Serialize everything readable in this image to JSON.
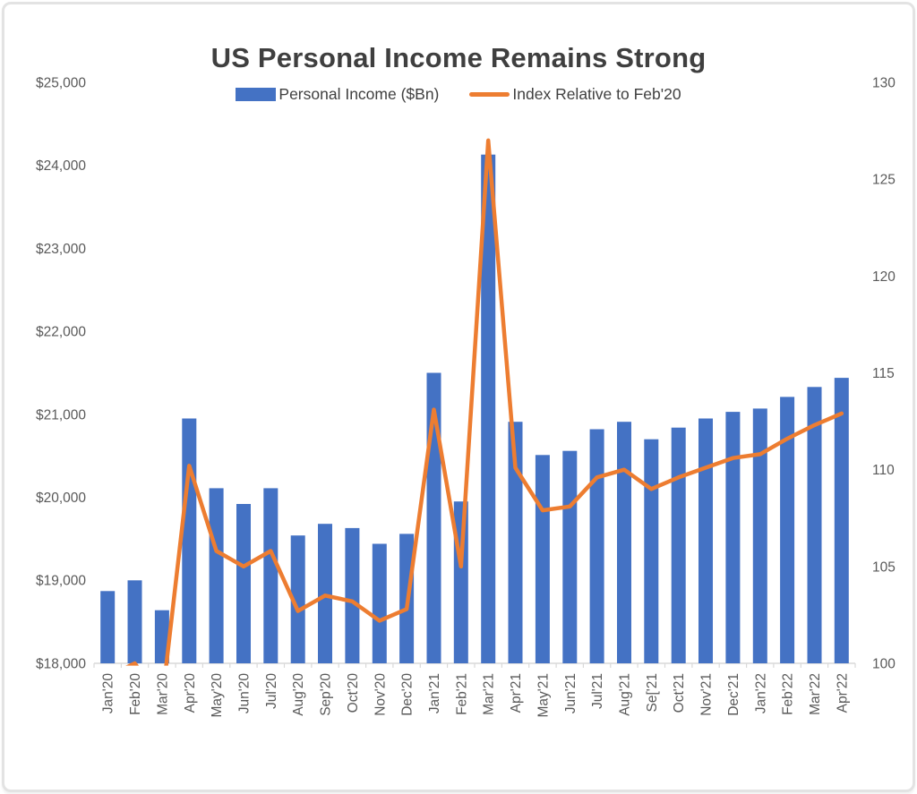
{
  "colors": {
    "background": "#FFFFFF",
    "frame_border": "#E3E3E3",
    "title_text": "#3F3F3F",
    "axis_text": "#595959",
    "axis_line": "#D9D9D9",
    "bar": "#4472C4",
    "line": "#ED7D31"
  },
  "chart_data": {
    "type": "combo",
    "title": "US Personal Income Remains Strong",
    "legend_position": "top-center",
    "grid": false,
    "categories": [
      "Jan'20",
      "Feb'20",
      "Mar'20",
      "Apr'20",
      "May'20",
      "Jun'20",
      "Jul'20",
      "Aug'20",
      "Sep'20",
      "Oct'20",
      "Nov'20",
      "Dec'20",
      "Jan'21",
      "Feb'21",
      "Mar'21",
      "Apr'21",
      "May'21",
      "Jun'21",
      "Jul'21",
      "Aug'21",
      "Se['21",
      "Oct'21",
      "Nov'21",
      "Dec'21",
      "Jan'22",
      "Feb'22",
      "Mar'22",
      "Apr'22"
    ],
    "series": [
      {
        "name": "Personal Income ($Bn)",
        "type": "bar",
        "axis": "left",
        "color": "#4472C4",
        "values": [
          18870,
          19000,
          18640,
          20950,
          20110,
          19920,
          20110,
          19540,
          19680,
          19630,
          19440,
          19560,
          21500,
          19950,
          24130,
          20910,
          20510,
          20560,
          20820,
          20910,
          20700,
          20840,
          20950,
          21030,
          21070,
          21210,
          21330,
          21440
        ]
      },
      {
        "name": "Index Relative to Feb'20",
        "type": "line",
        "axis": "right",
        "color": "#ED7D31",
        "values": [
          99.3,
          100.0,
          98.0,
          110.2,
          105.8,
          105.0,
          105.8,
          102.7,
          103.5,
          103.2,
          102.2,
          102.8,
          113.1,
          105.0,
          127.0,
          110.1,
          107.9,
          108.1,
          109.6,
          110.0,
          109.0,
          109.6,
          110.1,
          110.6,
          110.8,
          111.6,
          112.3,
          112.9
        ]
      }
    ],
    "left_axis": {
      "min": 18000,
      "max": 25000,
      "step": 1000,
      "tick_labels": [
        "$25,000",
        "$24,000",
        "$23,000",
        "$22,000",
        "$21,000",
        "$20,000",
        "$19,000",
        "$18,000"
      ]
    },
    "right_axis": {
      "min": 100,
      "max": 130,
      "step": 5,
      "tick_labels": [
        "130",
        "125",
        "120",
        "115",
        "110",
        "105",
        "100"
      ]
    },
    "annotations": {
      "sep21_label_typo": "Se['21",
      "clipped_line_points": "Jan'20 and Mar'20 index values fall below right-axis minimum (100) and are clipped at the plot bottom; line is visible only as a stub touching the axis at Feb'20 = 100"
    }
  }
}
